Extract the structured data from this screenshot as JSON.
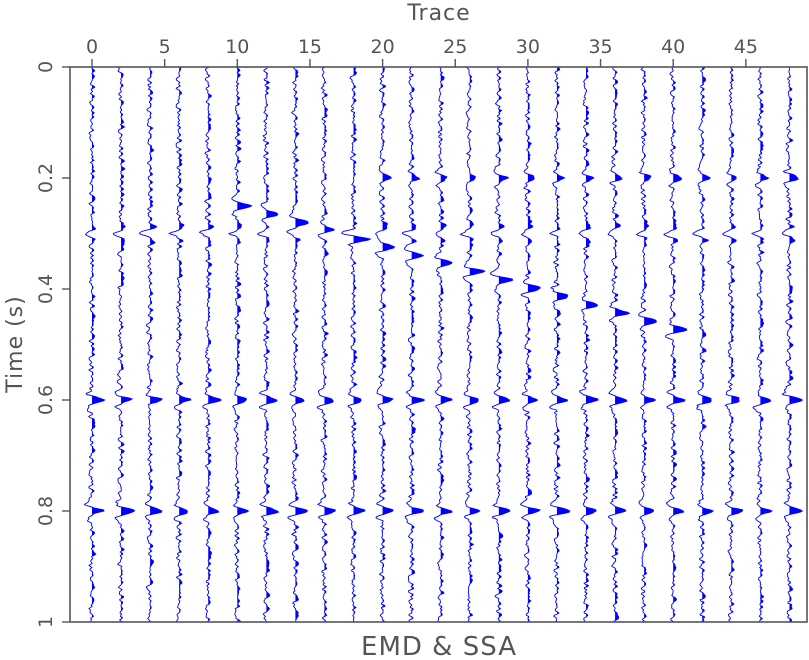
{
  "chart_data": {
    "type": "seismic-wiggle",
    "title": "EMD & SSA",
    "xlabel": "Trace",
    "ylabel": "Time (s)",
    "x_axis_position": "top",
    "xlim": [
      -1,
      49
    ],
    "ylim": [
      0,
      1
    ],
    "y_inverted": true,
    "x_ticks": [
      0,
      5,
      10,
      15,
      20,
      25,
      30,
      35,
      40,
      45
    ],
    "x_tick_labels": [
      "0",
      "5",
      "10",
      "15",
      "20",
      "25",
      "30",
      "35",
      "40",
      "45"
    ],
    "y_ticks": [
      0,
      0.2,
      0.4,
      0.6,
      0.8,
      1
    ],
    "y_tick_labels": [
      "0",
      "0.2",
      "0.4",
      "0.6",
      "0.8",
      "1"
    ],
    "trace_count": 25,
    "trace_positions": [
      0,
      2,
      4,
      6,
      8,
      10,
      12,
      14,
      16,
      18,
      20,
      22,
      24,
      26,
      28,
      30,
      32,
      34,
      36,
      38,
      40,
      42,
      44,
      46,
      48
    ],
    "time_samples": 501,
    "trace_color": "#0000ff",
    "fill": "positive",
    "events": [
      {
        "name": "flat event",
        "t0": 0.2,
        "dip_s_per_trace": 0,
        "traces_from": 20,
        "traces_to": 48,
        "amplitude": 0.55,
        "polarity": 1
      },
      {
        "name": "flat event",
        "t0": 0.3,
        "dip_s_per_trace": 0,
        "traces_from": 0,
        "traces_to": 48,
        "amplitude": 0.55,
        "polarity": -1
      },
      {
        "name": "dipping event",
        "t0": 0.25,
        "dip_s_per_trace": 0.00743,
        "traces_from": 10,
        "traces_to": 40,
        "amplitude": 0.9,
        "polarity": 1
      },
      {
        "name": "flat event",
        "t0": 0.6,
        "dip_s_per_trace": 0,
        "traces_from": 0,
        "traces_to": 48,
        "amplitude": 0.8,
        "polarity": 1
      },
      {
        "name": "flat event",
        "t0": 0.8,
        "dip_s_per_trace": 0,
        "traces_from": 0,
        "traces_to": 48,
        "amplitude": 0.8,
        "polarity": 1
      }
    ],
    "noise": "random residual noise on all traces",
    "grid": false
  },
  "colors": {
    "trace": "#0000ff",
    "axis": "#555555",
    "text": "#555555",
    "background": "#ffffff"
  }
}
